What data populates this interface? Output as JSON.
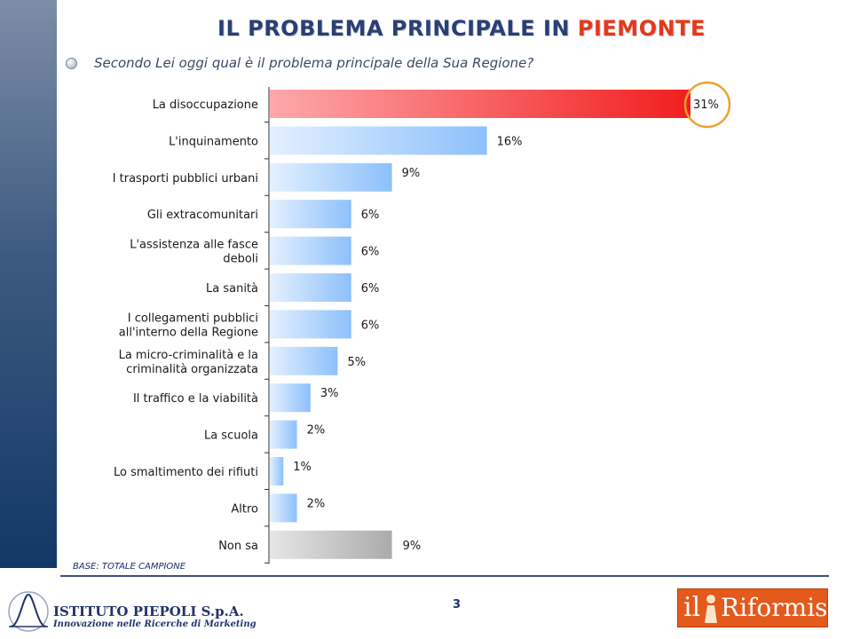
{
  "header": {
    "title_prefix": "IL PROBLEMA PRINCIPALE IN ",
    "title_highlight": "PIEMONTE",
    "question": "Secondo Lei oggi qual è il problema principale della Sua Regione?"
  },
  "chart_data": {
    "type": "bar",
    "orientation": "horizontal",
    "categories": [
      "La disoccupazione",
      "L'inquinamento",
      "I trasporti pubblici urbani",
      "Gli extracomunitari",
      "L'assistenza alle fasce|deboli",
      "La sanità",
      "I collegamenti pubblici|all'interno della Regione",
      "La micro-criminalità e la|criminalità organizzata",
      "Il traffico e la viabilità",
      "La scuola",
      "Lo smaltimento dei rifiuti",
      "Altro",
      "Non sa"
    ],
    "values": [
      31,
      16,
      9,
      6,
      6,
      6,
      6,
      5,
      3,
      2,
      1,
      2,
      9
    ],
    "value_labels": [
      "31%",
      "16%",
      "9%",
      "6%",
      "6%",
      "6%",
      "6%",
      "5%",
      "3%",
      "2%",
      "1%",
      "2%",
      "9%"
    ],
    "unit": "%",
    "xlim": [
      0,
      31
    ],
    "highlighted": "La disoccupazione",
    "colors": {
      "highlight": "#f21d1d",
      "default": "#8cc0fb",
      "non_sa": "#ababab",
      "circle": "#f0a030"
    }
  },
  "footer": {
    "base_note": "BASE: TOTALE CAMPIONE",
    "page_number": "3",
    "piepoli_name": "ISTITUTO PIEPOLI S.p.A.",
    "piepoli_tagline": "Innovazione nelle Ricerche di Marketing",
    "riformista_prefix": "il",
    "riformista_name": "Riformista"
  }
}
